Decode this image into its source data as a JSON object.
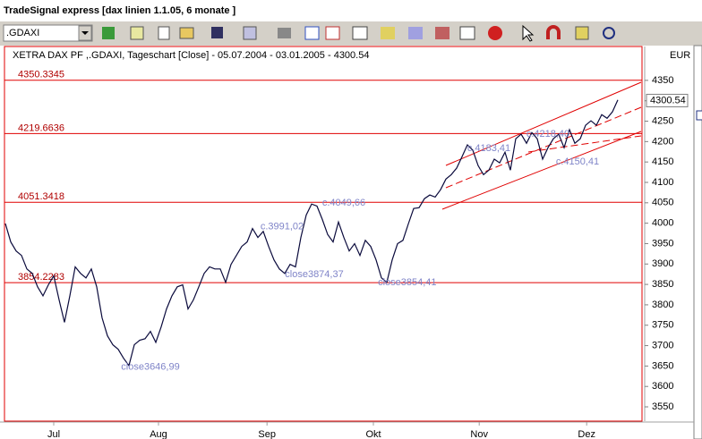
{
  "window": {
    "title": "TradeSignal express [dax linien 1.1.05, 6 monate ]"
  },
  "toolbar": {
    "symbol": ".GDAXI"
  },
  "chart_data": {
    "type": "line",
    "title": "XETRA DAX PF ,.GDAXI, Tageschart [Close] - 05.07.2004 - 03.01.2005 - 4300.54",
    "unit": "EUR",
    "color": "#0a0a3c",
    "values": [
      3999,
      3954,
      3932,
      3921,
      3888,
      3877,
      3844,
      3822,
      3849,
      3871,
      3812,
      3757,
      3822,
      3893,
      3877,
      3866,
      3888,
      3844,
      3768,
      3724,
      3702,
      3691,
      3669,
      3651,
      3702,
      3713,
      3717,
      3735,
      3708,
      3746,
      3790,
      3822,
      3844,
      3849,
      3790,
      3812,
      3844,
      3877,
      3893,
      3888,
      3888,
      3855,
      3899,
      3921,
      3943,
      3954,
      3987,
      3965,
      3980,
      3943,
      3910,
      3888,
      3877,
      3899,
      3893,
      3965,
      4020,
      4047,
      4042,
      4009,
      3972,
      3954,
      4003,
      3965,
      3932,
      3950,
      3921,
      3958,
      3943,
      3910,
      3866,
      3855,
      3910,
      3950,
      3958,
      3998,
      4036,
      4038,
      4060,
      4069,
      4064,
      4082,
      4108,
      4119,
      4135,
      4163,
      4192,
      4179,
      4141,
      4119,
      4130,
      4157,
      4148,
      4174,
      4130,
      4207,
      4218,
      4196,
      4222,
      4207,
      4157,
      4185,
      4207,
      4218,
      4185,
      4229,
      4196,
      4207,
      4240,
      4251,
      4240,
      4266,
      4257,
      4273,
      4302
    ],
    "last_value": 4300.54,
    "xlim": [
      0,
      118.5
    ],
    "xticks": [
      {
        "value": 9,
        "label": "Jul"
      },
      {
        "value": 28.5,
        "label": "Aug"
      },
      {
        "value": 48.7,
        "label": "Sep"
      },
      {
        "value": 68.5,
        "label": "Okt"
      },
      {
        "value": 88.2,
        "label": "Nov"
      },
      {
        "value": 108.2,
        "label": "Dez"
      }
    ],
    "ylim": [
      3515,
      4433
    ],
    "yticks": [
      3550,
      3600,
      3650,
      3700,
      3750,
      3800,
      3850,
      3900,
      3950,
      4000,
      4050,
      4100,
      4150,
      4200,
      4250,
      4300,
      4350
    ],
    "hlines": [
      4350.3345,
      4219.6636,
      4051.3418,
      3854.2283
    ],
    "hline_color": "#e00000",
    "annotations": [
      {
        "text": "close3646,99",
        "x": 27,
        "y": 3646.99
      },
      {
        "text": "c.3991,02",
        "x": 51.5,
        "y": 3991.02
      },
      {
        "text": "close3874,37",
        "x": 57.5,
        "y": 3874.37
      },
      {
        "text": "c.4049,66",
        "x": 63,
        "y": 4049.66
      },
      {
        "text": "close3854,41",
        "x": 74.8,
        "y": 3854.41
      },
      {
        "text": "c.4183,41",
        "x": 90,
        "y": 4183.41
      },
      {
        "text": "c.4218,40",
        "x": 101,
        "y": 4218.4
      },
      {
        "text": "c.4150,41",
        "x": 106.5,
        "y": 4150.41
      }
    ],
    "annotation_color": "#7f84c8"
  }
}
